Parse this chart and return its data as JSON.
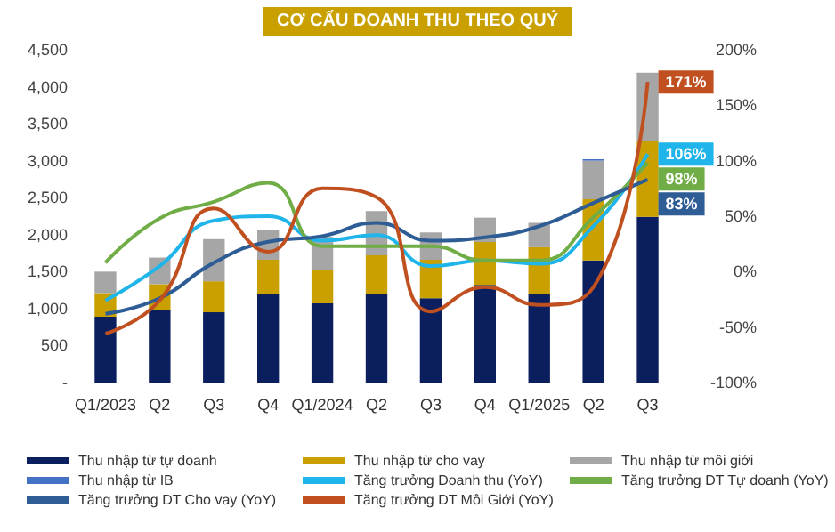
{
  "chart_data": {
    "type": "bar",
    "title": "CƠ CẤU DOANH THU THEO QUÝ",
    "stacked": true,
    "categories": [
      "Q1/2023",
      "Q2",
      "Q3",
      "Q4",
      "Q1/2024",
      "Q2",
      "Q3",
      "Q4",
      "Q1/2025",
      "Q2",
      "Q3"
    ],
    "series": [
      {
        "name": "Thu nhập từ tự doanh",
        "color": "#0b1f5e",
        "values": [
          890,
          980,
          950,
          1200,
          1070,
          1200,
          1140,
          1320,
          1200,
          1650,
          2240
        ]
      },
      {
        "name": "Thu nhập từ cho vay",
        "color": "#c9a000",
        "values": [
          320,
          350,
          420,
          460,
          450,
          520,
          520,
          580,
          630,
          830,
          1030
        ]
      },
      {
        "name": "Thu nhập từ môi giới",
        "color": "#a6a6a6",
        "values": [
          290,
          360,
          570,
          400,
          450,
          600,
          370,
          330,
          330,
          520,
          920
        ]
      },
      {
        "name": "Thu nhập từ IB",
        "color": "#4472c4",
        "values": [
          0,
          0,
          0,
          0,
          0,
          0,
          0,
          0,
          0,
          20,
          0
        ]
      },
      {
        "name": "Tăng trưởng Doanh thu (YoY)",
        "type": "line",
        "axis": "y2",
        "color": "#1fb5ea",
        "values": [
          -26,
          5,
          46,
          50,
          28,
          33,
          5,
          10,
          7,
          41,
          106
        ],
        "value_labels": [
          null,
          null,
          null,
          null,
          null,
          null,
          null,
          null,
          null,
          null,
          "106%"
        ]
      },
      {
        "name": "Tăng trưởng DT Tự doanh (YoY)",
        "type": "line",
        "axis": "y2",
        "color": "#70ad47",
        "values": [
          8,
          48,
          63,
          80,
          23,
          23,
          23,
          10,
          10,
          49,
          98
        ],
        "value_labels": [
          null,
          null,
          null,
          null,
          null,
          null,
          null,
          null,
          null,
          null,
          "98%"
        ]
      },
      {
        "name": "Tăng trưởng DT Cho vay (YoY)",
        "type": "line",
        "axis": "y2",
        "color": "#2e5c94",
        "values": [
          -38,
          -24,
          8,
          27,
          32,
          44,
          28,
          31,
          41,
          62,
          83
        ],
        "value_labels": [
          null,
          null,
          null,
          null,
          null,
          null,
          null,
          null,
          null,
          null,
          "83%"
        ]
      },
      {
        "name": "Tăng trưởng DT Môi Giới (YoY)",
        "type": "line",
        "axis": "y2",
        "color": "#c0501f",
        "values": [
          -56,
          -26,
          57,
          18,
          75,
          67,
          -36,
          -14,
          -30,
          -14,
          171
        ],
        "value_labels": [
          null,
          null,
          null,
          null,
          null,
          null,
          null,
          null,
          null,
          null,
          "171%"
        ]
      }
    ],
    "ylim": [
      0,
      4500
    ],
    "yticks": [
      {
        "value": 0,
        "label": "-"
      },
      {
        "value": 500,
        "label": "500"
      },
      {
        "value": 1000,
        "label": "1,000"
      },
      {
        "value": 1500,
        "label": "1,500"
      },
      {
        "value": 2000,
        "label": "2,000"
      },
      {
        "value": 2500,
        "label": "2,500"
      },
      {
        "value": 3000,
        "label": "3,000"
      },
      {
        "value": 3500,
        "label": "3,500"
      },
      {
        "value": 4000,
        "label": "4,000"
      },
      {
        "value": 4500,
        "label": "4,500"
      }
    ],
    "y2lim": [
      -100,
      200
    ],
    "y2ticks": [
      {
        "value": -100,
        "label": "-100%"
      },
      {
        "value": -50,
        "label": "-50%"
      },
      {
        "value": 0,
        "label": "0%"
      },
      {
        "value": 50,
        "label": "50%"
      },
      {
        "value": 100,
        "label": "100%"
      },
      {
        "value": 150,
        "label": "150%"
      },
      {
        "value": 200,
        "label": "200%"
      }
    ],
    "grid": false,
    "legend": "bottom",
    "marker": "none"
  }
}
